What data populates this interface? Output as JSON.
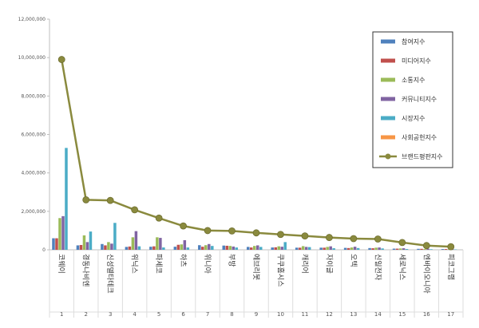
{
  "chart_data": {
    "type": "bar",
    "ylim": [
      0,
      12000000
    ],
    "yticks": [
      "0",
      "2,000,000",
      "4,000,000",
      "6,000,000",
      "8,000,000",
      "10,000,000",
      "12,000,000"
    ],
    "ytick_values": [
      0,
      2000000,
      4000000,
      6000000,
      8000000,
      10000000,
      12000000
    ],
    "categories": [
      "코웨이",
      "경동나비엔",
      "신성델타테크",
      "위닉스",
      "파세코",
      "하츠",
      "위니아",
      "부방",
      "에브리봇",
      "쿠쿠홈시스",
      "캐리어",
      "자이글",
      "오텍",
      "신일전자",
      "세로닉스",
      "엔바이오니아",
      "피코그램"
    ],
    "rank_numbers": [
      "1",
      "2",
      "3",
      "4",
      "5",
      "6",
      "7",
      "8",
      "9",
      "10",
      "11",
      "12",
      "13",
      "14",
      "15",
      "16",
      "17"
    ],
    "series": [
      {
        "name": "참여지수",
        "color": "#4f81bd",
        "values": [
          600000,
          230000,
          300000,
          150000,
          160000,
          160000,
          240000,
          220000,
          150000,
          120000,
          110000,
          110000,
          100000,
          90000,
          60000,
          50000,
          40000
        ]
      },
      {
        "name": "미디어지수",
        "color": "#c0504d",
        "values": [
          600000,
          250000,
          230000,
          170000,
          180000,
          260000,
          160000,
          210000,
          120000,
          130000,
          110000,
          110000,
          90000,
          80000,
          60000,
          50000,
          40000
        ]
      },
      {
        "name": "소통지수",
        "color": "#9bbb59",
        "values": [
          1650000,
          750000,
          400000,
          650000,
          650000,
          280000,
          240000,
          200000,
          200000,
          180000,
          190000,
          150000,
          120000,
          110000,
          70000,
          40000,
          30000
        ]
      },
      {
        "name": "커뮤니티지수",
        "color": "#8064a2",
        "values": [
          1750000,
          400000,
          320000,
          970000,
          620000,
          500000,
          300000,
          170000,
          230000,
          160000,
          150000,
          180000,
          160000,
          120000,
          80000,
          60000,
          40000
        ]
      },
      {
        "name": "시장지수",
        "color": "#4bacc6",
        "values": [
          5300000,
          950000,
          1400000,
          180000,
          120000,
          120000,
          200000,
          120000,
          150000,
          400000,
          140000,
          80000,
          90000,
          70000,
          40000,
          30000,
          20000
        ]
      },
      {
        "name": "사회공헌지수",
        "color": "#f79646",
        "values": [
          0,
          0,
          0,
          0,
          0,
          0,
          0,
          0,
          0,
          0,
          0,
          0,
          0,
          0,
          0,
          0,
          0
        ]
      }
    ],
    "line_series": {
      "name": "브랜드평판지수",
      "color": "#8a8a3e",
      "values": [
        9900000,
        2600000,
        2570000,
        2080000,
        1650000,
        1240000,
        1000000,
        980000,
        880000,
        800000,
        720000,
        640000,
        580000,
        560000,
        380000,
        220000,
        160000
      ]
    },
    "legend_position": "top-right",
    "grid": false
  }
}
